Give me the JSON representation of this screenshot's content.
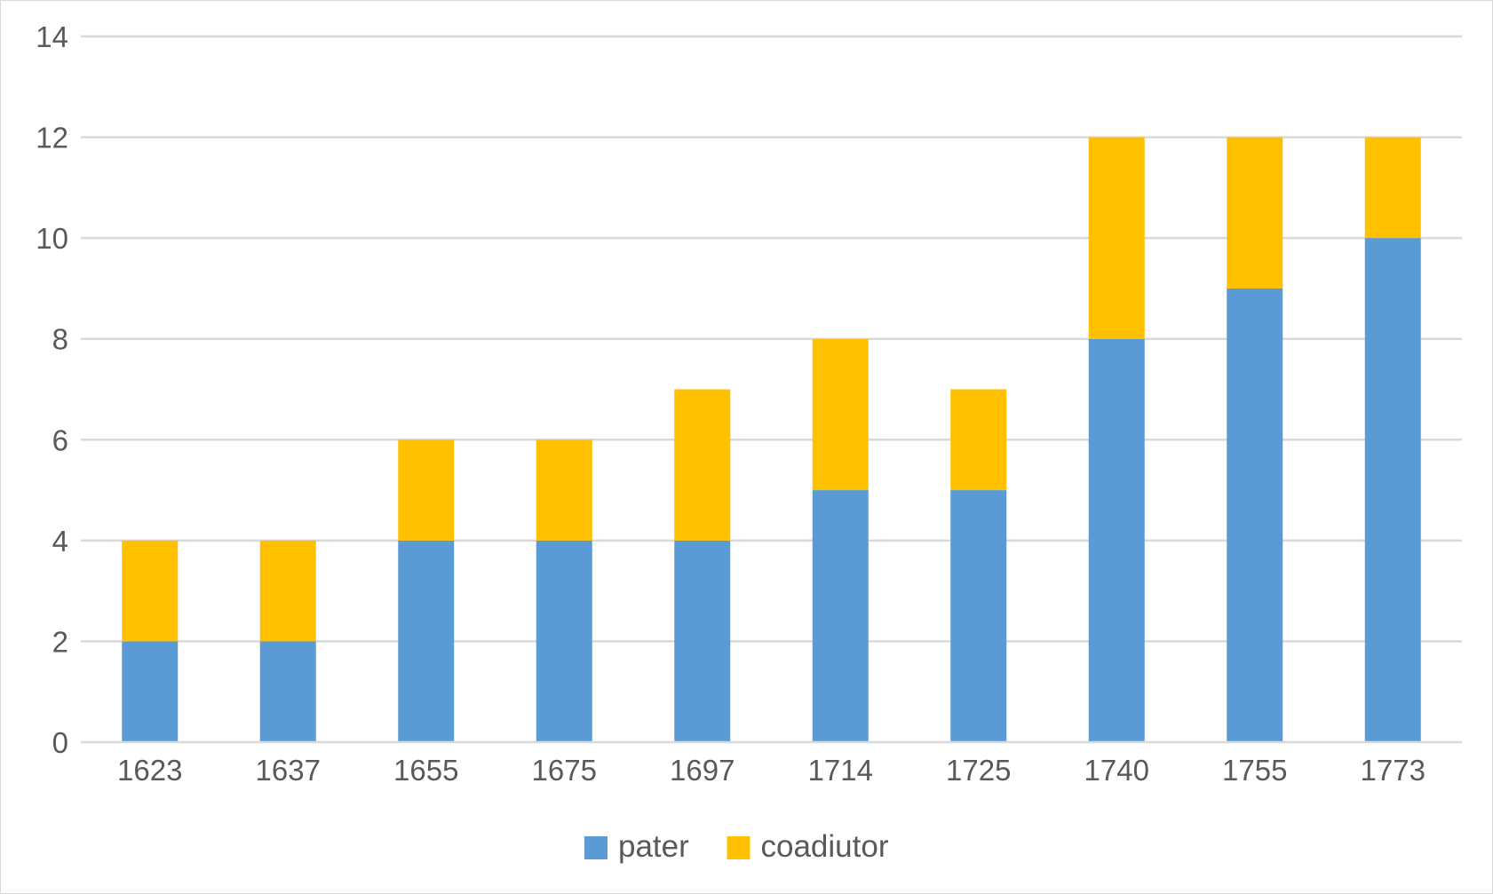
{
  "chart_data": {
    "type": "bar",
    "stacked": true,
    "title": "",
    "xlabel": "",
    "ylabel": "",
    "categories": [
      "1623",
      "1637",
      "1655",
      "1675",
      "1697",
      "1714",
      "1725",
      "1740",
      "1755",
      "1773"
    ],
    "series": [
      {
        "name": "pater",
        "color": "#5b9bd5",
        "values": [
          2,
          2,
          4,
          4,
          4,
          5,
          5,
          8,
          9,
          10
        ]
      },
      {
        "name": "coadiutor",
        "color": "#ffc000",
        "values": [
          2,
          2,
          2,
          2,
          3,
          3,
          2,
          4,
          3,
          2
        ]
      }
    ],
    "ylim": [
      0,
      14
    ],
    "yticks": [
      0,
      2,
      4,
      6,
      8,
      10,
      12,
      14
    ],
    "grid": true,
    "legend": "bottom-center"
  }
}
